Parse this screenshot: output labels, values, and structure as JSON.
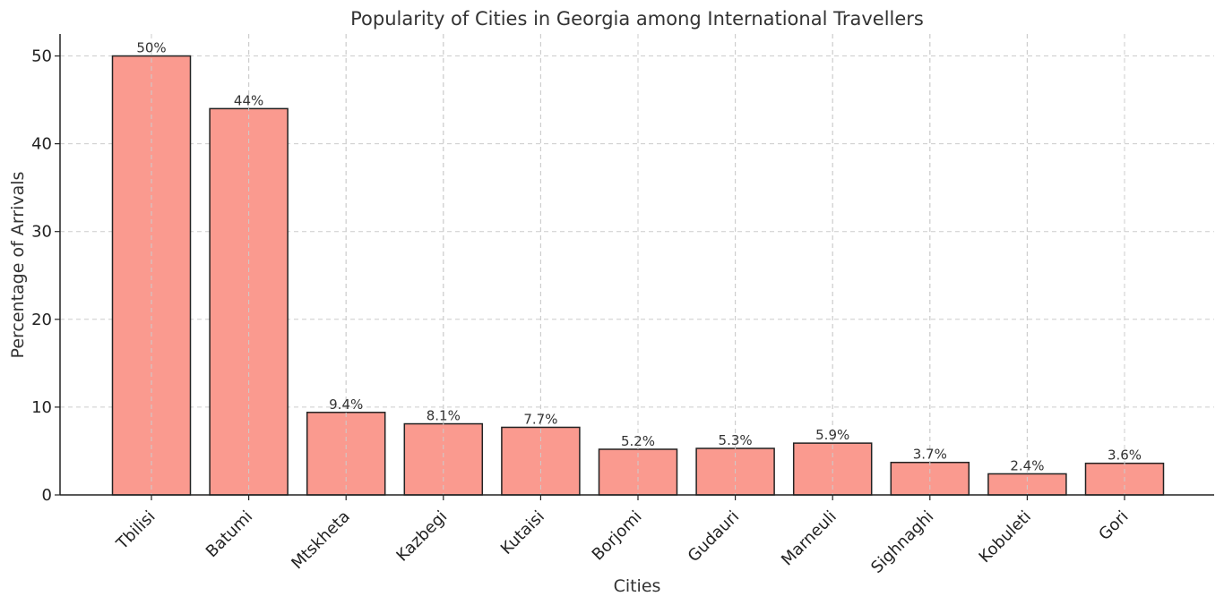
{
  "chart_data": {
    "type": "bar",
    "title": "Popularity of Cities in Georgia among International Travellers",
    "xlabel": "Cities",
    "ylabel": "Percentage of Arrivals",
    "categories": [
      "Tbilisi",
      "Batumi",
      "Mtskheta",
      "Kazbegi",
      "Kutaisi",
      "Borjomi",
      "Gudauri",
      "Marneuli",
      "Sighnaghi",
      "Kobuleti",
      "Gori"
    ],
    "values": [
      50,
      44,
      9.4,
      8.1,
      7.7,
      5.2,
      5.3,
      5.9,
      3.7,
      2.4,
      3.6
    ],
    "data_labels": [
      "50%",
      "44%",
      "9.4%",
      "8.1%",
      "7.7%",
      "5.2%",
      "5.3%",
      "5.9%",
      "3.7%",
      "2.4%",
      "3.6%"
    ],
    "yticks": [
      0,
      10,
      20,
      30,
      40,
      50
    ],
    "ylim": [
      0,
      52.5
    ],
    "grid": true,
    "bar_color": "#fa9a8f",
    "edge_color": "#222222"
  }
}
